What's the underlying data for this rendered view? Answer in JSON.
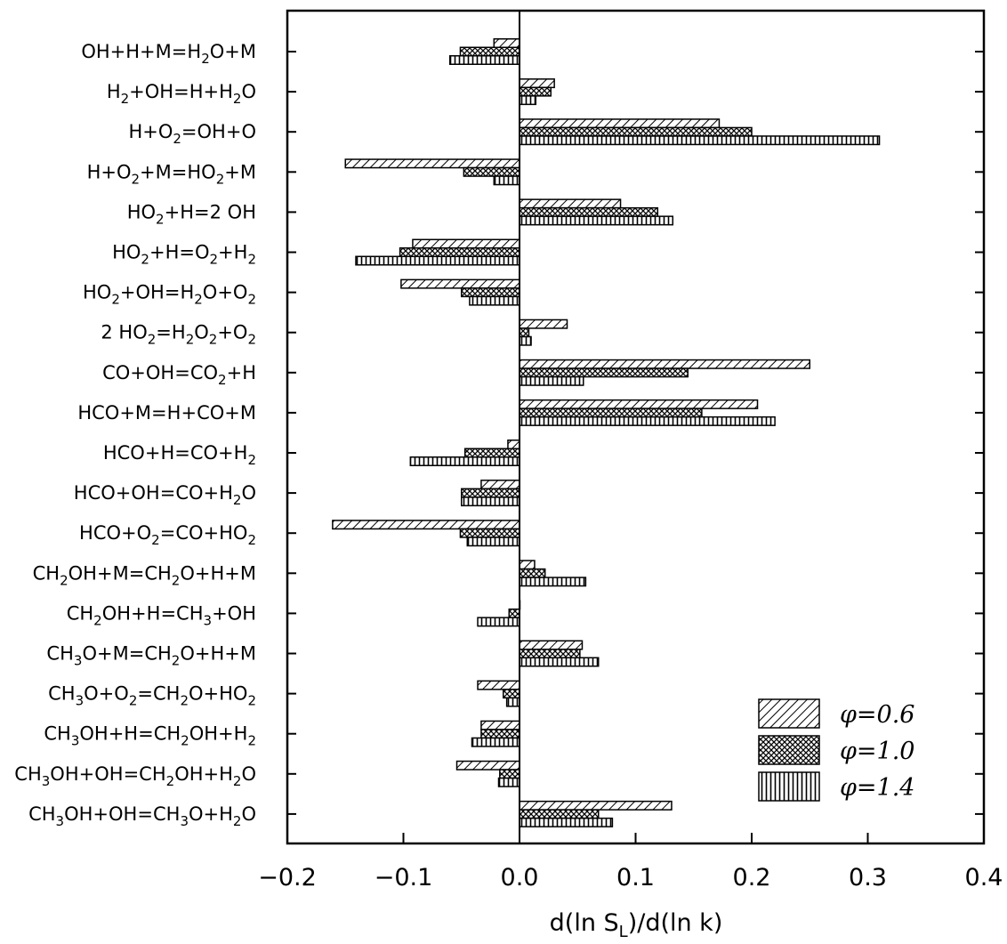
{
  "chart_data": {
    "type": "bar",
    "orientation": "horizontal",
    "categories": [
      "OH+H+M=H2O+M",
      "H2+OH=H+H2O",
      "H+O2=OH+O",
      "H+O2+M=HO2+M",
      "HO2+H=2 OH",
      "HO2+H=O2+H2",
      "HO2+OH=H2O+O2",
      "2 HO2=H2O2+O2",
      "CO+OH=CO2+H",
      "HCO+M=H+CO+M",
      "HCO+H=CO+H2",
      "HCO+OH=CO+H2O",
      "HCO+O2=CO+HO2",
      "CH2OH+M=CH2O+H+M",
      "CH2OH+H=CH3+OH",
      "CH3O+M=CH2O+H+M",
      "CH3O+O2=CH2O+HO2",
      "CH3OH+H=CH2OH+H2",
      "CH3OH+OH=CH2OH+H2O",
      "CH3OH+OH=CH3O+H2O"
    ],
    "series": [
      {
        "name": "φ=0.6",
        "pattern": "diagonal-hatch",
        "values": [
          -0.022,
          0.03,
          0.172,
          -0.15,
          0.087,
          -0.092,
          -0.102,
          0.041,
          0.25,
          0.205,
          -0.01,
          -0.033,
          -0.161,
          0.013,
          0.0,
          0.054,
          -0.036,
          -0.033,
          -0.054,
          0.131
        ]
      },
      {
        "name": "φ=1.0",
        "pattern": "cross-hatch",
        "values": [
          -0.051,
          0.027,
          0.2,
          -0.048,
          0.119,
          -0.103,
          -0.05,
          0.008,
          0.145,
          0.157,
          -0.047,
          -0.05,
          -0.051,
          0.022,
          -0.009,
          0.052,
          -0.014,
          -0.033,
          -0.017,
          0.068
        ]
      },
      {
        "name": "φ=1.4",
        "pattern": "vertical-hatch",
        "values": [
          -0.06,
          0.014,
          0.31,
          -0.022,
          0.132,
          -0.141,
          -0.043,
          0.01,
          0.055,
          0.22,
          -0.094,
          -0.05,
          -0.045,
          0.057,
          -0.036,
          0.068,
          -0.011,
          -0.041,
          -0.018,
          0.08
        ]
      }
    ],
    "xlabel": "d(ln S_L)/d(ln k)",
    "xlim": [
      -0.2,
      0.4
    ],
    "xticks": [
      -0.2,
      -0.1,
      0.0,
      0.1,
      0.2,
      0.3,
      0.4
    ],
    "xtick_labels": [
      "−0.2",
      "−0.1",
      "0.0",
      "0.1",
      "0.2",
      "0.3",
      "0.4"
    ],
    "legend_position": "bottom-right",
    "grid": false
  }
}
